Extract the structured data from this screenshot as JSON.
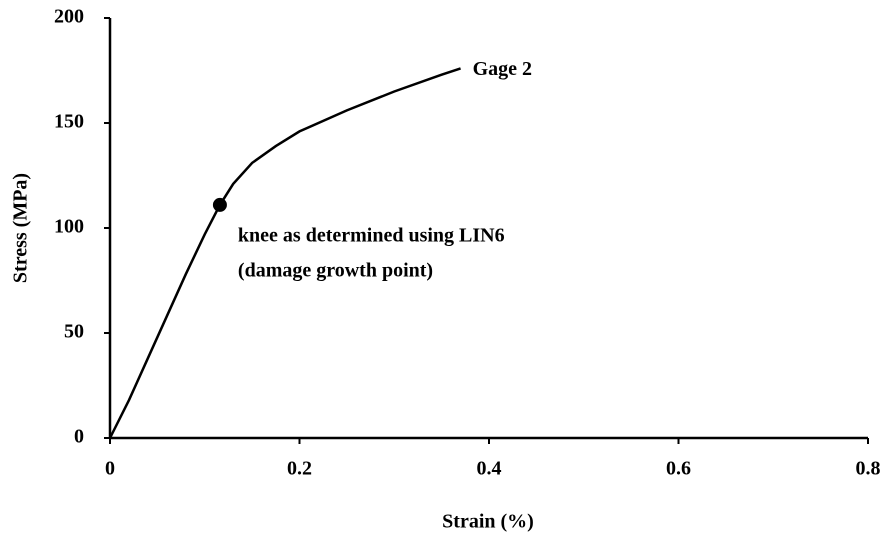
{
  "chart_data": {
    "type": "line",
    "xlabel": "Strain (%)",
    "ylabel": "Stress (MPa)",
    "xlim": [
      0,
      0.8
    ],
    "xticks": [
      0,
      0.2,
      0.4,
      0.6,
      0.8
    ],
    "ylim": [
      0,
      200
    ],
    "yticks": [
      0,
      50,
      100,
      150,
      200
    ],
    "series": [
      {
        "name": "Gage 2",
        "color": "#000000",
        "x": [
          0,
          0.02,
          0.04,
          0.06,
          0.08,
          0.1,
          0.116,
          0.13,
          0.15,
          0.175,
          0.2,
          0.25,
          0.3,
          0.35,
          0.37
        ],
        "values": [
          0,
          18,
          38,
          58,
          78,
          97,
          111,
          121,
          131,
          139,
          146,
          156,
          165,
          173,
          176
        ]
      }
    ],
    "knee": {
      "x": 0.116,
      "y": 111,
      "label": [
        "knee as determined using LIN6",
        "(damage growth point)"
      ]
    }
  }
}
